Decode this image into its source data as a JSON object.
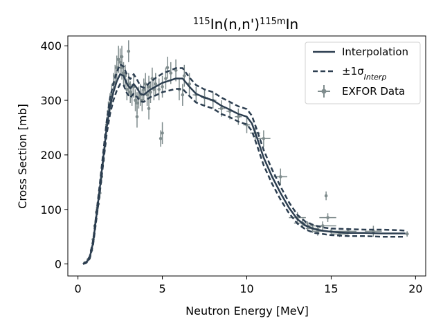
{
  "chart_data": {
    "type": "line",
    "title": {
      "base": "In(n,n')",
      "sup1": "115",
      "sup2": "115m",
      "tail": "In"
    },
    "xlabel": "Neutron Energy [MeV]",
    "ylabel": "Cross Section [mb]",
    "xlim": [
      -0.6,
      20.6
    ],
    "ylim": [
      -22,
      418
    ],
    "xticks": [
      0,
      5,
      10,
      15,
      20
    ],
    "yticks": [
      0,
      100,
      200,
      300,
      400
    ],
    "grid": false,
    "legend_position": "top-right",
    "legend": [
      {
        "label": "Interpolation"
      },
      {
        "label": "±1σ",
        "sub": "Interp"
      },
      {
        "label": "EXFOR Data"
      }
    ],
    "colors": {
      "line": "#2c3e50",
      "data": "#7f8c8d"
    },
    "series": [
      {
        "name": "Interpolation",
        "x": [
          0.3,
          0.5,
          0.7,
          0.9,
          1.1,
          1.3,
          1.5,
          1.7,
          1.9,
          2.1,
          2.3,
          2.5,
          2.7,
          2.9,
          3.1,
          3.3,
          3.5,
          3.7,
          3.9,
          4.1,
          4.3,
          4.6,
          5.0,
          5.4,
          5.8,
          6.2,
          6.6,
          7.0,
          7.5,
          8.0,
          8.5,
          9.0,
          9.5,
          10.0,
          10.3,
          10.6,
          11.0,
          11.5,
          12.0,
          12.5,
          13.0,
          13.5,
          14.0,
          14.5,
          15.0,
          16.0,
          17.0,
          18.0,
          19.0,
          19.4
        ],
        "y": [
          0,
          3,
          12,
          40,
          90,
          140,
          195,
          250,
          290,
          315,
          335,
          348,
          345,
          330,
          322,
          330,
          322,
          312,
          310,
          315,
          320,
          325,
          332,
          336,
          340,
          340,
          325,
          312,
          305,
          300,
          290,
          283,
          275,
          270,
          258,
          232,
          195,
          160,
          130,
          103,
          82,
          70,
          64,
          61,
          59,
          57,
          57,
          56,
          56,
          56
        ]
      },
      {
        "name": "+1σ",
        "x": [
          0.3,
          0.5,
          0.7,
          0.9,
          1.1,
          1.3,
          1.5,
          1.7,
          1.9,
          2.1,
          2.3,
          2.5,
          2.7,
          2.9,
          3.1,
          3.3,
          3.5,
          3.7,
          3.9,
          4.1,
          4.3,
          4.6,
          5.0,
          5.4,
          5.8,
          6.2,
          6.6,
          7.0,
          7.5,
          8.0,
          8.5,
          9.0,
          9.5,
          10.0,
          10.3,
          10.6,
          11.0,
          11.5,
          12.0,
          12.5,
          13.0,
          13.5,
          14.0,
          14.5,
          15.0,
          16.0,
          17.0,
          18.0,
          19.0,
          19.4
        ],
        "y": [
          0,
          4,
          14,
          44,
          96,
          148,
          205,
          262,
          305,
          330,
          352,
          366,
          362,
          347,
          339,
          348,
          338,
          326,
          323,
          328,
          334,
          341,
          349,
          354,
          359,
          359,
          342,
          328,
          320,
          315,
          305,
          297,
          289,
          284,
          272,
          246,
          209,
          173,
          142,
          113,
          90,
          77,
          71,
          67,
          65,
          64,
          63,
          63,
          62,
          61
        ]
      },
      {
        "name": "-1σ",
        "x": [
          0.3,
          0.5,
          0.7,
          0.9,
          1.1,
          1.3,
          1.5,
          1.7,
          1.9,
          2.1,
          2.3,
          2.5,
          2.7,
          2.9,
          3.1,
          3.3,
          3.5,
          3.7,
          3.9,
          4.1,
          4.3,
          4.6,
          5.0,
          5.4,
          5.8,
          6.2,
          6.6,
          7.0,
          7.5,
          8.0,
          8.5,
          9.0,
          9.5,
          10.0,
          10.3,
          10.6,
          11.0,
          11.5,
          12.0,
          12.5,
          13.0,
          13.5,
          14.0,
          14.5,
          15.0,
          16.0,
          17.0,
          18.0,
          19.0,
          19.4
        ],
        "y": [
          0,
          2,
          10,
          36,
          84,
          132,
          185,
          238,
          275,
          300,
          318,
          330,
          328,
          313,
          305,
          312,
          306,
          298,
          297,
          302,
          306,
          309,
          315,
          318,
          321,
          321,
          308,
          296,
          290,
          285,
          275,
          269,
          261,
          256,
          244,
          218,
          181,
          147,
          118,
          93,
          74,
          63,
          57,
          55,
          53,
          51,
          51,
          50,
          50,
          50
        ]
      }
    ],
    "exfor_data": {
      "x": [
        0.4,
        0.6,
        0.8,
        0.9,
        1.0,
        1.1,
        1.2,
        1.3,
        1.4,
        1.5,
        1.6,
        1.7,
        1.8,
        1.9,
        2.0,
        2.1,
        2.2,
        2.3,
        2.4,
        2.5,
        2.6,
        2.7,
        2.8,
        2.9,
        3.0,
        3.1,
        3.2,
        3.3,
        3.4,
        3.5,
        3.6,
        3.7,
        3.8,
        3.9,
        4.0,
        4.1,
        4.2,
        4.3,
        4.4,
        4.5,
        4.6,
        4.8,
        5.0,
        5.2,
        5.5,
        5.8,
        6.0,
        6.3,
        6.6,
        7.0,
        7.5,
        8.0,
        8.5,
        9.0,
        9.5,
        10.0,
        10.5,
        11.0,
        12.0,
        13.0,
        13.3,
        13.6,
        13.9,
        14.2,
        14.5,
        14.7,
        14.8,
        15.0,
        15.5,
        16.0,
        17.5,
        19.5,
        3.5,
        4.2,
        5.0,
        6.2,
        3.0,
        2.6,
        4.9,
        5.3
      ],
      "y": [
        2,
        8,
        25,
        45,
        70,
        95,
        110,
        130,
        160,
        190,
        220,
        255,
        280,
        295,
        310,
        330,
        345,
        360,
        375,
        370,
        360,
        350,
        345,
        320,
        330,
        315,
        310,
        325,
        300,
        295,
        305,
        310,
        300,
        320,
        330,
        310,
        325,
        315,
        340,
        320,
        330,
        320,
        325,
        340,
        350,
        355,
        320,
        345,
        330,
        310,
        305,
        300,
        285,
        280,
        270,
        255,
        240,
        230,
        160,
        85,
        75,
        70,
        65,
        60,
        70,
        125,
        85,
        60,
        55,
        60,
        60,
        55,
        270,
        285,
        240,
        310,
        390,
        380,
        230,
        360
      ],
      "yerr": [
        2,
        3,
        5,
        6,
        8,
        10,
        10,
        10,
        12,
        12,
        15,
        15,
        18,
        18,
        20,
        20,
        20,
        22,
        25,
        25,
        22,
        20,
        20,
        20,
        20,
        20,
        20,
        20,
        20,
        20,
        20,
        20,
        20,
        20,
        20,
        20,
        20,
        20,
        20,
        20,
        20,
        20,
        20,
        20,
        20,
        20,
        20,
        20,
        20,
        15,
        15,
        15,
        15,
        15,
        15,
        15,
        15,
        15,
        15,
        10,
        8,
        8,
        8,
        8,
        8,
        8,
        8,
        6,
        6,
        6,
        10,
        5,
        20,
        20,
        20,
        20,
        20,
        20,
        15,
        20
      ],
      "xerr": [
        0.05,
        0.05,
        0.05,
        0.05,
        0.05,
        0.05,
        0.05,
        0.05,
        0.05,
        0.05,
        0.05,
        0.05,
        0.05,
        0.05,
        0.05,
        0.05,
        0.05,
        0.05,
        0.05,
        0.05,
        0.05,
        0.05,
        0.05,
        0.05,
        0.05,
        0.05,
        0.05,
        0.05,
        0.05,
        0.05,
        0.05,
        0.05,
        0.05,
        0.05,
        0.05,
        0.05,
        0.05,
        0.05,
        0.05,
        0.05,
        0.05,
        0.05,
        0.05,
        0.05,
        0.1,
        0.1,
        0.1,
        0.1,
        0.1,
        0.2,
        0.2,
        0.2,
        0.2,
        0.2,
        0.2,
        0.2,
        0.3,
        0.4,
        0.4,
        0.5,
        0.5,
        0.4,
        0.4,
        0.5,
        0.8,
        0.0,
        0.5,
        0.5,
        0.5,
        0.5,
        0.5,
        0.1,
        0.05,
        0.05,
        0.05,
        0.05,
        0.05,
        0.05,
        0.05,
        0.05
      ]
    }
  }
}
